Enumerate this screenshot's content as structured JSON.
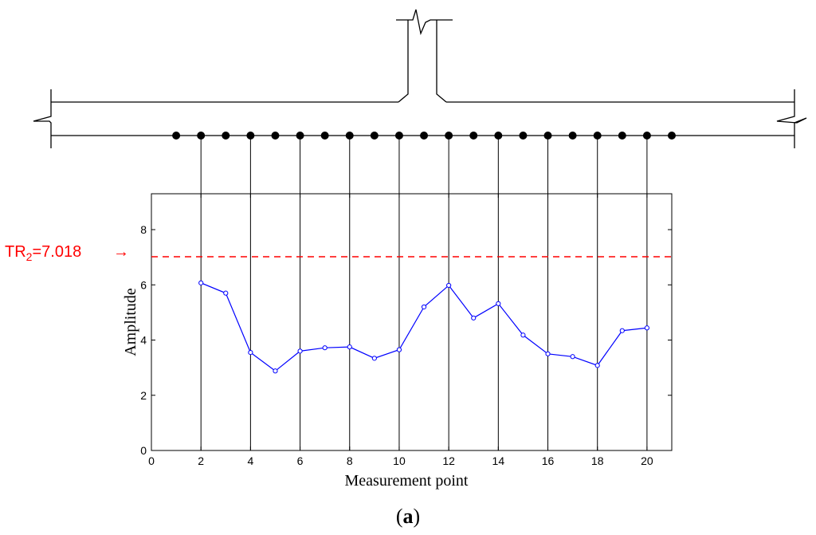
{
  "figure": {
    "caption_open": "(",
    "caption_letter": "a",
    "caption_close": ")"
  },
  "structure": {
    "sensor_count": 21,
    "connected_sensors": [
      2,
      4,
      6,
      8,
      10,
      12,
      14,
      16,
      18,
      20
    ]
  },
  "threshold": {
    "label_prefix": "TR",
    "label_subscript": "2",
    "label_value": "=7.018",
    "arrow": "→",
    "value": 7.018,
    "color": "#ff0000"
  },
  "chart_data": {
    "type": "line",
    "xlabel": "Measurement point",
    "ylabel": "Amplitude",
    "xlim": [
      0,
      21
    ],
    "ylim": [
      0,
      9.3
    ],
    "xticks": [
      0,
      2,
      4,
      6,
      8,
      10,
      12,
      14,
      16,
      18,
      20
    ],
    "yticks": [
      0,
      2,
      4,
      6,
      8
    ],
    "grid": false,
    "vertical_lines_at": [
      2,
      4,
      6,
      8,
      10,
      12,
      14,
      16,
      18,
      20
    ],
    "series": [
      {
        "color": "#0000ff",
        "marker": "circle",
        "x": [
          2,
          3,
          4,
          5,
          6,
          7,
          8,
          9,
          10,
          11,
          12,
          13,
          14,
          15,
          16,
          17,
          18,
          19,
          20
        ],
        "values": [
          6.07,
          5.7,
          3.55,
          2.88,
          3.6,
          3.72,
          3.75,
          3.34,
          3.65,
          5.2,
          5.98,
          4.8,
          5.32,
          4.18,
          3.5,
          3.4,
          3.08,
          4.34,
          4.44
        ]
      }
    ]
  }
}
